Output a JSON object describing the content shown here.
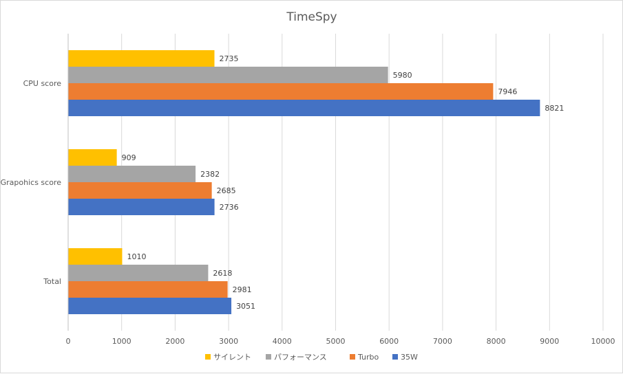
{
  "chart_data": {
    "type": "bar",
    "orientation": "horizontal",
    "title": "TimeSpy",
    "categories": [
      "CPU score",
      "Grapohics score",
      "Total"
    ],
    "series": [
      {
        "name": "サイレント",
        "color": "#FFC000",
        "values": [
          2735,
          909,
          1010
        ]
      },
      {
        "name": "パフォーマンス",
        "color": "#A5A5A5",
        "values": [
          5980,
          2382,
          2618
        ]
      },
      {
        "name": "Turbo",
        "color": "#ED7D31",
        "values": [
          7946,
          2685,
          2981
        ]
      },
      {
        "name": "35W",
        "color": "#4472C4",
        "values": [
          8821,
          2736,
          3051
        ]
      }
    ],
    "xlim": [
      0,
      10000
    ],
    "xticks": [
      "0",
      "1000",
      "2000",
      "3000",
      "4000",
      "5000",
      "6000",
      "7000",
      "8000",
      "9000",
      "10000"
    ],
    "grid": true,
    "legend_position": "bottom"
  }
}
